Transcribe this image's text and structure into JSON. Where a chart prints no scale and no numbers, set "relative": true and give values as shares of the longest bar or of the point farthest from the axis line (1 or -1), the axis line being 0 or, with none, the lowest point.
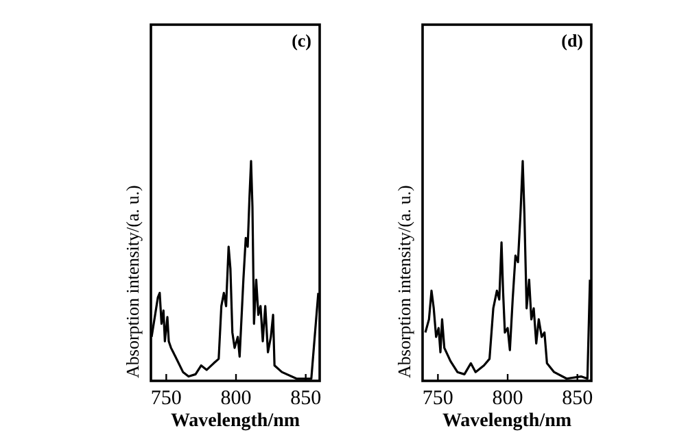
{
  "chart_data": [
    {
      "type": "line",
      "relative": true,
      "xlabel": "Wavelength/nm",
      "ylabel": "Absorption intensity/(a. u.)",
      "annotations": [
        "(c)"
      ],
      "xlim": [
        739,
        860
      ],
      "xticks": [
        750,
        800,
        850
      ],
      "color": "#000000",
      "line_style": "solid",
      "x": [
        739.5,
        742,
        744,
        745.3,
        746.6,
        748,
        749,
        750.8,
        751.8,
        753.4,
        756.6,
        762,
        766,
        771,
        775,
        779,
        784,
        787.6,
        789.5,
        791.3,
        792.9,
        794.7,
        796,
        797.4,
        799,
        801.3,
        802.6,
        805.3,
        807,
        808.4,
        809.7,
        810.8,
        811.8,
        812.9,
        814.5,
        816,
        817.6,
        819.2,
        821,
        822.9,
        825,
        826.6,
        827.6,
        832.9,
        843.4,
        854,
        859
      ],
      "values": [
        0.2,
        0.3,
        0.38,
        0.4,
        0.26,
        0.32,
        0.18,
        0.29,
        0.18,
        0.15,
        0.11,
        0.04,
        0.02,
        0.03,
        0.07,
        0.05,
        0.08,
        0.1,
        0.34,
        0.4,
        0.34,
        0.61,
        0.51,
        0.22,
        0.15,
        0.2,
        0.11,
        0.46,
        0.65,
        0.61,
        0.84,
        1.0,
        0.79,
        0.26,
        0.46,
        0.3,
        0.34,
        0.18,
        0.34,
        0.13,
        0.2,
        0.3,
        0.07,
        0.04,
        0.01,
        0.01,
        0.4
      ]
    },
    {
      "type": "line",
      "relative": true,
      "xlabel": "Wavelength/nm",
      "ylabel": "Absorption intensity/(a. u.)",
      "annotations": [
        "(d)"
      ],
      "xlim": [
        739,
        860
      ],
      "xticks": [
        750,
        800,
        850
      ],
      "color": "#000000",
      "line_style": "solid",
      "x": [
        741,
        743.6,
        745.4,
        747,
        748.7,
        750.5,
        751.8,
        753,
        754.6,
        759,
        764,
        769,
        773.6,
        777,
        783,
        787,
        789.7,
        792.3,
        794,
        795.6,
        796.7,
        798,
        800,
        801.6,
        803.6,
        805.6,
        807.4,
        809.2,
        810.8,
        812,
        813.6,
        815.4,
        817,
        818.7,
        820.5,
        822.3,
        824.4,
        826.4,
        828.2,
        833.3,
        842.3,
        852.6,
        857.2,
        859
      ],
      "values": [
        0.22,
        0.28,
        0.41,
        0.33,
        0.2,
        0.24,
        0.13,
        0.28,
        0.15,
        0.09,
        0.04,
        0.03,
        0.08,
        0.04,
        0.07,
        0.1,
        0.33,
        0.41,
        0.37,
        0.63,
        0.41,
        0.22,
        0.24,
        0.14,
        0.37,
        0.57,
        0.54,
        0.76,
        1.0,
        0.76,
        0.33,
        0.46,
        0.28,
        0.33,
        0.17,
        0.28,
        0.2,
        0.22,
        0.08,
        0.04,
        0.01,
        0.02,
        0.01,
        0.46
      ]
    }
  ]
}
